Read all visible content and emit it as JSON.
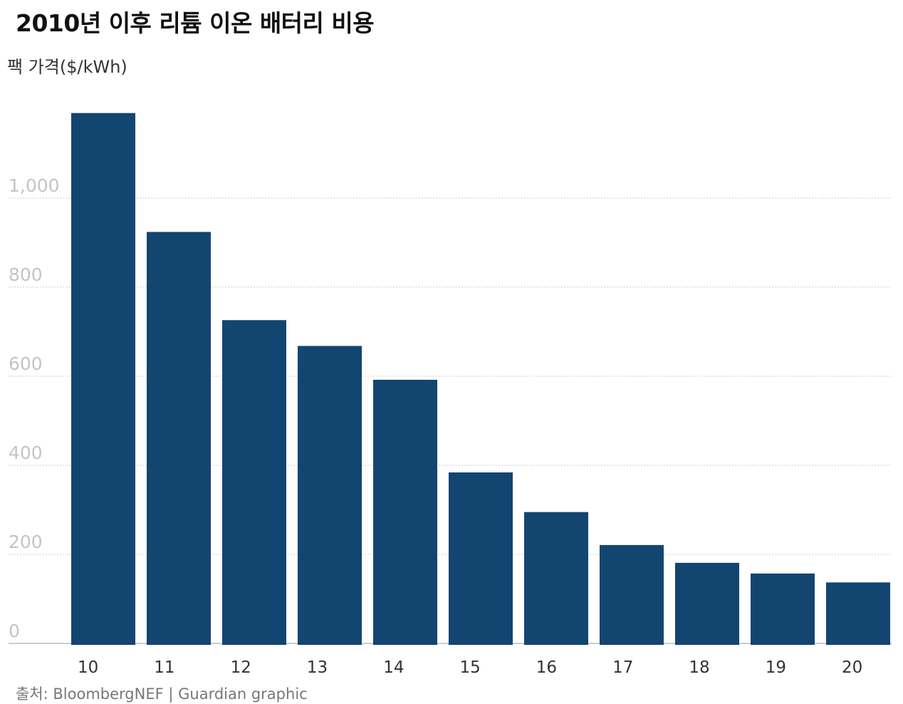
{
  "chart_data": {
    "type": "bar",
    "title": "2010년 이후 리튬 이온 배터리 비용",
    "ylabel": "팩 가격($/kWh)",
    "xlabel": "",
    "source": "출처: BloombergNEF  | Guardian graphic",
    "categories": [
      "10",
      "11",
      "12",
      "13",
      "14",
      "15",
      "16",
      "17",
      "18",
      "19",
      "20"
    ],
    "values": [
      1191,
      924,
      726,
      668,
      592,
      384,
      295,
      221,
      181,
      157,
      137
    ],
    "ylim": [
      0,
      1200
    ],
    "yticks": [
      0,
      200,
      400,
      600,
      800,
      1000
    ],
    "ytick_labels": [
      "0",
      "200",
      "400",
      "600",
      "800",
      "1,000"
    ],
    "grid": true,
    "legend": "none",
    "bar_color": "#134571",
    "grid_color": "#cccccc"
  }
}
